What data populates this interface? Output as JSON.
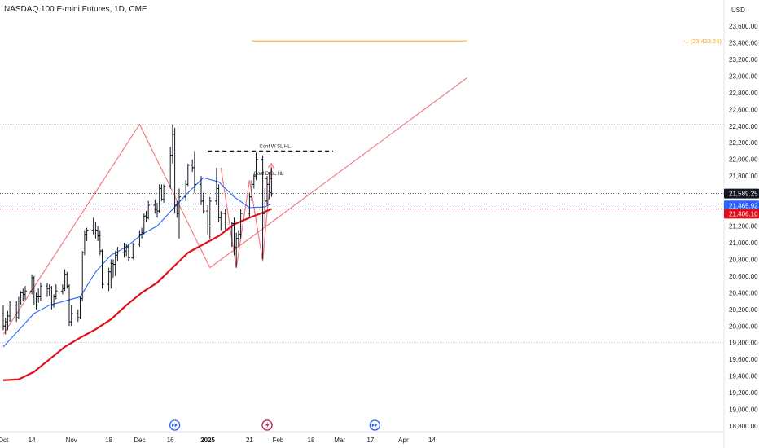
{
  "header": {
    "title": "NASDAQ 100 E-mini Futures, 1D, CME",
    "currency": "USD"
  },
  "colors": {
    "background": "#ffffff",
    "bar": "#131722",
    "ma_fast": "#2962ff",
    "ma_slow": "#e0101a",
    "trendline": "#f27a82",
    "target_line": "#f5a623",
    "label_last": "#131722",
    "label_ma_fast": "#2962ff",
    "label_ma_slow": "#e0101a"
  },
  "chart_data": {
    "type": "ohlc",
    "ylim": [
      18700,
      24300
    ],
    "y_ticks": [
      18800,
      19000,
      19200,
      19400,
      19600,
      19800,
      20000,
      20200,
      20400,
      20600,
      20800,
      21000,
      21200,
      21400,
      21600,
      21800,
      22000,
      22200,
      22400,
      22600,
      22800,
      23000,
      23200,
      23400,
      23600
    ],
    "y_tick_labels": [
      "18,800.00",
      "19,000.00",
      "19,200.00",
      "19,400.00",
      "19,600.00",
      "19,800.00",
      "20,000.00",
      "20,200.00",
      "20,400.00",
      "20,600.00",
      "20,800.00",
      "21,000.00",
      "21,200.00",
      "21,400.00",
      "21,600.00",
      "21,800.00",
      "22,000.00",
      "22,200.00",
      "22,400.00",
      "22,600.00",
      "22,800.00",
      "23,000.00",
      "23,200.00",
      "23,400.00",
      "23,600.00"
    ],
    "x_labels": [
      {
        "label": "Oct",
        "date": "2024-10-01",
        "bold": false
      },
      {
        "label": "14",
        "date": "2024-10-14",
        "bold": false
      },
      {
        "label": "Nov",
        "date": "2024-11-01",
        "bold": false
      },
      {
        "label": "18",
        "date": "2024-11-18",
        "bold": false
      },
      {
        "label": "Dec",
        "date": "2024-12-02",
        "bold": false
      },
      {
        "label": "16",
        "date": "2024-12-16",
        "bold": false
      },
      {
        "label": "2025",
        "date": "2025-01-02",
        "bold": true
      },
      {
        "label": "21",
        "date": "2025-01-21",
        "bold": false
      },
      {
        "label": "Feb",
        "date": "2025-02-03",
        "bold": false
      },
      {
        "label": "18",
        "date": "2025-02-18",
        "bold": false
      },
      {
        "label": "Mar",
        "date": "2025-03-03",
        "bold": false
      },
      {
        "label": "17",
        "date": "2025-03-17",
        "bold": false
      },
      {
        "label": "Apr",
        "date": "2025-04-01",
        "bold": false
      },
      {
        "label": "14",
        "date": "2025-04-14",
        "bold": false
      }
    ],
    "bars": [
      {
        "d": "2024-10-01",
        "o": 20150,
        "h": 20250,
        "l": 19950,
        "c": 20000
      },
      {
        "d": "2024-10-02",
        "o": 20000,
        "h": 20100,
        "l": 19900,
        "c": 20050
      },
      {
        "d": "2024-10-03",
        "o": 20050,
        "h": 20180,
        "l": 19950,
        "c": 20120
      },
      {
        "d": "2024-10-04",
        "o": 20120,
        "h": 20300,
        "l": 20050,
        "c": 20250
      },
      {
        "d": "2024-10-07",
        "o": 20250,
        "h": 20300,
        "l": 20050,
        "c": 20100
      },
      {
        "d": "2024-10-08",
        "o": 20100,
        "h": 20350,
        "l": 20080,
        "c": 20300
      },
      {
        "d": "2024-10-09",
        "o": 20300,
        "h": 20420,
        "l": 20250,
        "c": 20400
      },
      {
        "d": "2024-10-10",
        "o": 20400,
        "h": 20450,
        "l": 20300,
        "c": 20380
      },
      {
        "d": "2024-10-11",
        "o": 20380,
        "h": 20480,
        "l": 20320,
        "c": 20420
      },
      {
        "d": "2024-10-14",
        "o": 20420,
        "h": 20620,
        "l": 20380,
        "c": 20580
      },
      {
        "d": "2024-10-15",
        "o": 20580,
        "h": 20600,
        "l": 20250,
        "c": 20300
      },
      {
        "d": "2024-10-16",
        "o": 20300,
        "h": 20400,
        "l": 20200,
        "c": 20350
      },
      {
        "d": "2024-10-17",
        "o": 20350,
        "h": 20450,
        "l": 20280,
        "c": 20350
      },
      {
        "d": "2024-10-18",
        "o": 20350,
        "h": 20520,
        "l": 20300,
        "c": 20480
      },
      {
        "d": "2024-10-21",
        "o": 20480,
        "h": 20520,
        "l": 20350,
        "c": 20450
      },
      {
        "d": "2024-10-22",
        "o": 20450,
        "h": 20500,
        "l": 20360,
        "c": 20460
      },
      {
        "d": "2024-10-23",
        "o": 20460,
        "h": 20480,
        "l": 20200,
        "c": 20250
      },
      {
        "d": "2024-10-24",
        "o": 20250,
        "h": 20380,
        "l": 20220,
        "c": 20350
      },
      {
        "d": "2024-10-25",
        "o": 20350,
        "h": 20500,
        "l": 20320,
        "c": 20420
      },
      {
        "d": "2024-10-28",
        "o": 20420,
        "h": 20500,
        "l": 20380,
        "c": 20450
      },
      {
        "d": "2024-10-29",
        "o": 20450,
        "h": 20680,
        "l": 20420,
        "c": 20620
      },
      {
        "d": "2024-10-30",
        "o": 20620,
        "h": 20650,
        "l": 20450,
        "c": 20480
      },
      {
        "d": "2024-10-31",
        "o": 20480,
        "h": 20500,
        "l": 20000,
        "c": 20050
      },
      {
        "d": "2024-11-01",
        "o": 20050,
        "h": 20250,
        "l": 20000,
        "c": 20150
      },
      {
        "d": "2024-11-04",
        "o": 20150,
        "h": 20200,
        "l": 20050,
        "c": 20100
      },
      {
        "d": "2024-11-05",
        "o": 20100,
        "h": 20350,
        "l": 20080,
        "c": 20330
      },
      {
        "d": "2024-11-06",
        "o": 20330,
        "h": 20900,
        "l": 20300,
        "c": 20880
      },
      {
        "d": "2024-11-07",
        "o": 20880,
        "h": 21150,
        "l": 20850,
        "c": 21100
      },
      {
        "d": "2024-11-08",
        "o": 21100,
        "h": 21180,
        "l": 21020,
        "c": 21150
      },
      {
        "d": "2024-11-11",
        "o": 21150,
        "h": 21300,
        "l": 21100,
        "c": 21200
      },
      {
        "d": "2024-11-12",
        "o": 21200,
        "h": 21250,
        "l": 21050,
        "c": 21150
      },
      {
        "d": "2024-11-13",
        "o": 21150,
        "h": 21200,
        "l": 21020,
        "c": 21080
      },
      {
        "d": "2024-11-14",
        "o": 21080,
        "h": 21150,
        "l": 20850,
        "c": 20900
      },
      {
        "d": "2024-11-15",
        "o": 20900,
        "h": 20920,
        "l": 20450,
        "c": 20500
      },
      {
        "d": "2024-11-18",
        "o": 20500,
        "h": 20700,
        "l": 20420,
        "c": 20650
      },
      {
        "d": "2024-11-19",
        "o": 20650,
        "h": 20800,
        "l": 20450,
        "c": 20750
      },
      {
        "d": "2024-11-20",
        "o": 20750,
        "h": 20800,
        "l": 20580,
        "c": 20740
      },
      {
        "d": "2024-11-21",
        "o": 20740,
        "h": 20900,
        "l": 20600,
        "c": 20850
      },
      {
        "d": "2024-11-22",
        "o": 20850,
        "h": 20950,
        "l": 20780,
        "c": 20880
      },
      {
        "d": "2024-11-25",
        "o": 20880,
        "h": 21000,
        "l": 20820,
        "c": 20900
      },
      {
        "d": "2024-11-26",
        "o": 20900,
        "h": 20980,
        "l": 20840,
        "c": 20950
      },
      {
        "d": "2024-11-27",
        "o": 20950,
        "h": 20980,
        "l": 20780,
        "c": 20820
      },
      {
        "d": "2024-11-29",
        "o": 20820,
        "h": 21000,
        "l": 20800,
        "c": 20980
      },
      {
        "d": "2024-12-02",
        "o": 20980,
        "h": 21150,
        "l": 20950,
        "c": 21100
      },
      {
        "d": "2024-12-03",
        "o": 21100,
        "h": 21180,
        "l": 21050,
        "c": 21120
      },
      {
        "d": "2024-12-04",
        "o": 21120,
        "h": 21350,
        "l": 21100,
        "c": 21320
      },
      {
        "d": "2024-12-05",
        "o": 21320,
        "h": 21380,
        "l": 21250,
        "c": 21300
      },
      {
        "d": "2024-12-06",
        "o": 21300,
        "h": 21500,
        "l": 21280,
        "c": 21450
      },
      {
        "d": "2024-12-09",
        "o": 21450,
        "h": 21520,
        "l": 21350,
        "c": 21400
      },
      {
        "d": "2024-12-10",
        "o": 21400,
        "h": 21480,
        "l": 21300,
        "c": 21380
      },
      {
        "d": "2024-12-11",
        "o": 21380,
        "h": 21700,
        "l": 21360,
        "c": 21650
      },
      {
        "d": "2024-12-12",
        "o": 21650,
        "h": 21700,
        "l": 21500,
        "c": 21520
      },
      {
        "d": "2024-12-13",
        "o": 21520,
        "h": 21700,
        "l": 21480,
        "c": 21680
      },
      {
        "d": "2024-12-16",
        "o": 21680,
        "h": 22150,
        "l": 21650,
        "c": 22050
      },
      {
        "d": "2024-12-17",
        "o": 22050,
        "h": 22420,
        "l": 21950,
        "c": 22300
      },
      {
        "d": "2024-12-18",
        "o": 22300,
        "h": 22380,
        "l": 21350,
        "c": 21450
      },
      {
        "d": "2024-12-19",
        "o": 21450,
        "h": 21500,
        "l": 21300,
        "c": 21350
      },
      {
        "d": "2024-12-20",
        "o": 21350,
        "h": 21650,
        "l": 21050,
        "c": 21550
      },
      {
        "d": "2024-12-23",
        "o": 21550,
        "h": 21750,
        "l": 21500,
        "c": 21700
      },
      {
        "d": "2024-12-24",
        "o": 21700,
        "h": 21950,
        "l": 21680,
        "c": 21930
      },
      {
        "d": "2024-12-26",
        "o": 21930,
        "h": 22000,
        "l": 21850,
        "c": 21900
      },
      {
        "d": "2024-12-27",
        "o": 21900,
        "h": 22100,
        "l": 21600,
        "c": 21700
      },
      {
        "d": "2024-12-30",
        "o": 21700,
        "h": 21800,
        "l": 21450,
        "c": 21500
      },
      {
        "d": "2024-12-31",
        "o": 21500,
        "h": 21600,
        "l": 21350,
        "c": 21380
      },
      {
        "d": "2025-01-02",
        "o": 21380,
        "h": 21450,
        "l": 21100,
        "c": 21200
      },
      {
        "d": "2025-01-03",
        "o": 21200,
        "h": 21550,
        "l": 21050,
        "c": 21500
      },
      {
        "d": "2025-01-06",
        "o": 21500,
        "h": 21900,
        "l": 21450,
        "c": 21650
      },
      {
        "d": "2025-01-07",
        "o": 21650,
        "h": 21700,
        "l": 21250,
        "c": 21300
      },
      {
        "d": "2025-01-08",
        "o": 21300,
        "h": 21380,
        "l": 21150,
        "c": 21350
      },
      {
        "d": "2025-01-10",
        "o": 21350,
        "h": 21400,
        "l": 21150,
        "c": 21200
      },
      {
        "d": "2025-01-13",
        "o": 21200,
        "h": 21250,
        "l": 20950,
        "c": 21230
      },
      {
        "d": "2025-01-14",
        "o": 21230,
        "h": 21300,
        "l": 20850,
        "c": 20950
      },
      {
        "d": "2025-01-15",
        "o": 20950,
        "h": 21120,
        "l": 20700,
        "c": 21050
      },
      {
        "d": "2025-01-16",
        "o": 21050,
        "h": 21150,
        "l": 20950,
        "c": 21100
      },
      {
        "d": "2025-01-17",
        "o": 21100,
        "h": 21400,
        "l": 21050,
        "c": 21350
      },
      {
        "d": "2025-01-21",
        "o": 21350,
        "h": 21600,
        "l": 21300,
        "c": 21550
      },
      {
        "d": "2025-01-22",
        "o": 21550,
        "h": 21750,
        "l": 21500,
        "c": 21700
      },
      {
        "d": "2025-01-23",
        "o": 21700,
        "h": 21820,
        "l": 21650,
        "c": 21800
      },
      {
        "d": "2025-01-24",
        "o": 21800,
        "h": 22080,
        "l": 21750,
        "c": 22000
      },
      {
        "d": "2025-01-27",
        "o": 22000,
        "h": 22050,
        "l": 20800,
        "c": 21350
      },
      {
        "d": "2025-01-28",
        "o": 21350,
        "h": 21650,
        "l": 21200,
        "c": 21500
      },
      {
        "d": "2025-01-29",
        "o": 21500,
        "h": 21800,
        "l": 21450,
        "c": 21700
      },
      {
        "d": "2025-01-30",
        "o": 21700,
        "h": 21850,
        "l": 21520,
        "c": 21600
      },
      {
        "d": "2025-01-31",
        "o": 21600,
        "h": 21900,
        "l": 21550,
        "c": 21589
      }
    ],
    "series": [
      {
        "name": "",
        "color": "#2962ff",
        "type": "line",
        "points": [
          [
            "2024-10-01",
            19750
          ],
          [
            "2024-10-08",
            19950
          ],
          [
            "2024-10-15",
            20150
          ],
          [
            "2024-10-22",
            20250
          ],
          [
            "2024-10-29",
            20300
          ],
          [
            "2024-11-05",
            20350
          ],
          [
            "2024-11-12",
            20650
          ],
          [
            "2024-11-19",
            20850
          ],
          [
            "2024-11-26",
            20950
          ],
          [
            "2024-12-03",
            21100
          ],
          [
            "2024-12-10",
            21200
          ],
          [
            "2024-12-17",
            21400
          ],
          [
            "2024-12-24",
            21600
          ],
          [
            "2024-12-31",
            21780
          ],
          [
            "2025-01-07",
            21730
          ],
          [
            "2025-01-14",
            21550
          ],
          [
            "2025-01-21",
            21420
          ],
          [
            "2025-01-28",
            21430
          ],
          [
            "2025-01-31",
            21466
          ]
        ]
      },
      {
        "name": "",
        "color": "#e0101a",
        "type": "line",
        "points": [
          [
            "2024-10-01",
            19350
          ],
          [
            "2024-10-08",
            19360
          ],
          [
            "2024-10-15",
            19450
          ],
          [
            "2024-10-22",
            19600
          ],
          [
            "2024-10-29",
            19750
          ],
          [
            "2024-11-05",
            19860
          ],
          [
            "2024-11-12",
            19960
          ],
          [
            "2024-11-19",
            20080
          ],
          [
            "2024-11-26",
            20250
          ],
          [
            "2024-12-03",
            20400
          ],
          [
            "2024-12-10",
            20520
          ],
          [
            "2024-12-17",
            20700
          ],
          [
            "2024-12-24",
            20880
          ],
          [
            "2024-12-31",
            20980
          ],
          [
            "2025-01-07",
            21080
          ],
          [
            "2025-01-14",
            21220
          ],
          [
            "2025-01-21",
            21300
          ],
          [
            "2025-01-28",
            21370
          ],
          [
            "2025-01-31",
            21406
          ]
        ]
      }
    ],
    "drawings": {
      "trendline_zigzag": [
        [
          "2024-10-01",
          19900
        ],
        [
          "2024-12-02",
          22420
        ],
        [
          "2025-01-03",
          20700
        ]
      ],
      "trendline_rising": [
        [
          "2025-01-03",
          20700
        ],
        [
          "2025-04-30",
          22980
        ]
      ],
      "w_pattern": [
        [
          "2025-01-08",
          21900
        ],
        [
          "2025-01-15",
          20700
        ],
        [
          "2025-01-21",
          21750
        ],
        [
          "2025-01-27",
          20780
        ],
        [
          "2025-01-31",
          21950
        ]
      ],
      "dashed_level": {
        "from": "2025-01-02",
        "to": "2025-02-28",
        "value": 22100
      },
      "dashed_level_short": {
        "from": "2025-01-28",
        "to": "2025-02-01",
        "value": 21770
      },
      "target_line": {
        "from": "2025-01-22",
        "to": "2025-04-30",
        "value": 23423.25
      },
      "hlines_gray": [
        22420,
        19800
      ]
    },
    "annotations": {
      "conf_w": "Conf W SL HL",
      "conf_d": "Conf D SL HL",
      "target_label": "-1 (23,423.25)"
    },
    "price_labels": [
      {
        "value": 21589.25,
        "text": "21,589.25",
        "color": "#131722"
      },
      {
        "value": 21465.92,
        "text": "21,465.92",
        "color": "#2962ff"
      },
      {
        "value": 21406.1,
        "text": "21,406.10",
        "color": "#e0101a"
      }
    ],
    "events": [
      {
        "date": "2024-12-18",
        "icon": "fast-forward-circle-icon",
        "color": "#2962ff"
      },
      {
        "date": "2025-01-29",
        "icon": "lightning-circle-icon",
        "color": "#c2185b"
      },
      {
        "date": "2025-03-19",
        "icon": "fast-forward-circle-icon",
        "color": "#2962ff"
      }
    ]
  }
}
